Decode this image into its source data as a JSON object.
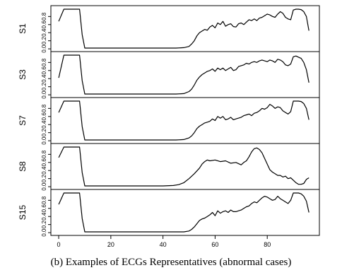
{
  "caption": "(b) Examples of ECGs Representatives (abnormal cases)",
  "chart_data": {
    "type": "line",
    "title": "",
    "xlabel": "",
    "ylabel": "",
    "xlim": [
      0,
      100
    ],
    "ylim": [
      0,
      1.0
    ],
    "x_ticks": [
      0,
      20,
      40,
      60,
      80
    ],
    "y_ticks": [
      0.0,
      0.2,
      0.4,
      0.6,
      0.8
    ],
    "y_tick_labels": [
      "0.0",
      "0.2",
      "0.4",
      "0.6",
      "0.8"
    ],
    "line_color": "#000000",
    "panels": [
      {
        "label": "S1",
        "x": [
          0,
          2,
          4,
          6,
          8,
          9,
          10,
          20,
          30,
          40,
          45,
          48,
          50,
          51,
          52,
          53,
          54,
          55,
          56,
          57,
          58,
          59,
          60,
          61,
          62,
          63,
          64,
          65,
          66,
          67,
          68,
          69,
          70,
          71,
          72,
          73,
          74,
          75,
          76,
          77,
          78,
          79,
          80,
          81,
          82,
          83,
          84,
          85,
          86,
          87,
          88,
          89,
          90,
          91,
          92,
          93,
          94,
          95,
          96
        ],
        "y": [
          0.68,
          0.98,
          0.98,
          0.98,
          0.98,
          0.35,
          0.02,
          0.02,
          0.02,
          0.02,
          0.02,
          0.03,
          0.06,
          0.12,
          0.2,
          0.32,
          0.4,
          0.44,
          0.48,
          0.46,
          0.54,
          0.58,
          0.52,
          0.64,
          0.6,
          0.68,
          0.56,
          0.6,
          0.62,
          0.55,
          0.54,
          0.62,
          0.64,
          0.6,
          0.66,
          0.72,
          0.7,
          0.74,
          0.7,
          0.76,
          0.78,
          0.82,
          0.86,
          0.84,
          0.8,
          0.78,
          0.86,
          0.92,
          0.88,
          0.78,
          0.74,
          0.72,
          0.96,
          0.98,
          0.98,
          0.97,
          0.92,
          0.8,
          0.45
        ]
      },
      {
        "label": "S3",
        "x": [
          0,
          2,
          4,
          6,
          8,
          9,
          10,
          20,
          30,
          40,
          45,
          48,
          50,
          51,
          52,
          53,
          54,
          55,
          56,
          57,
          58,
          59,
          60,
          61,
          62,
          63,
          64,
          65,
          66,
          67,
          68,
          69,
          70,
          71,
          72,
          73,
          74,
          75,
          76,
          77,
          78,
          79,
          80,
          81,
          82,
          83,
          84,
          85,
          86,
          87,
          88,
          89,
          90,
          91,
          92,
          93,
          94,
          95,
          96
        ],
        "y": [
          0.42,
          0.98,
          0.98,
          0.98,
          0.98,
          0.35,
          0.02,
          0.02,
          0.02,
          0.02,
          0.02,
          0.03,
          0.08,
          0.14,
          0.24,
          0.36,
          0.44,
          0.5,
          0.54,
          0.58,
          0.6,
          0.64,
          0.58,
          0.66,
          0.62,
          0.66,
          0.6,
          0.64,
          0.68,
          0.6,
          0.62,
          0.7,
          0.72,
          0.74,
          0.78,
          0.76,
          0.8,
          0.82,
          0.8,
          0.84,
          0.86,
          0.84,
          0.82,
          0.86,
          0.84,
          0.8,
          0.88,
          0.86,
          0.82,
          0.74,
          0.72,
          0.76,
          0.94,
          0.96,
          0.93,
          0.9,
          0.8,
          0.62,
          0.3
        ]
      },
      {
        "label": "S7",
        "x": [
          0,
          2,
          4,
          6,
          8,
          9,
          10,
          20,
          30,
          40,
          45,
          48,
          50,
          51,
          52,
          53,
          54,
          55,
          56,
          57,
          58,
          59,
          60,
          61,
          62,
          63,
          64,
          65,
          66,
          67,
          68,
          69,
          70,
          71,
          72,
          73,
          74,
          75,
          76,
          77,
          78,
          79,
          80,
          81,
          82,
          83,
          84,
          85,
          86,
          87,
          88,
          89,
          90,
          91,
          92,
          93,
          94,
          95,
          96
        ],
        "y": [
          0.7,
          0.98,
          0.98,
          0.98,
          0.98,
          0.35,
          0.02,
          0.02,
          0.02,
          0.02,
          0.02,
          0.03,
          0.07,
          0.12,
          0.2,
          0.3,
          0.36,
          0.4,
          0.44,
          0.46,
          0.48,
          0.54,
          0.5,
          0.6,
          0.56,
          0.6,
          0.52,
          0.54,
          0.58,
          0.52,
          0.54,
          0.56,
          0.58,
          0.62,
          0.64,
          0.66,
          0.62,
          0.68,
          0.7,
          0.74,
          0.8,
          0.78,
          0.82,
          0.9,
          0.86,
          0.8,
          0.84,
          0.82,
          0.74,
          0.7,
          0.66,
          0.72,
          0.98,
          0.98,
          0.98,
          0.97,
          0.92,
          0.8,
          0.52
        ]
      },
      {
        "label": "S8",
        "x": [
          0,
          2,
          4,
          6,
          8,
          9,
          10,
          20,
          30,
          40,
          44,
          46,
          48,
          50,
          52,
          54,
          55,
          56,
          57,
          58,
          60,
          62,
          64,
          66,
          68,
          70,
          71,
          72,
          73,
          74,
          75,
          76,
          77,
          78,
          79,
          80,
          81,
          82,
          83,
          84,
          85,
          86,
          87,
          88,
          89,
          90,
          91,
          92,
          93,
          94,
          95,
          96
        ],
        "y": [
          0.72,
          0.98,
          0.98,
          0.98,
          0.98,
          0.35,
          0.02,
          0.02,
          0.02,
          0.02,
          0.03,
          0.05,
          0.1,
          0.2,
          0.32,
          0.46,
          0.56,
          0.62,
          0.66,
          0.64,
          0.66,
          0.62,
          0.64,
          0.58,
          0.6,
          0.54,
          0.6,
          0.64,
          0.74,
          0.86,
          0.94,
          0.96,
          0.92,
          0.84,
          0.7,
          0.56,
          0.42,
          0.36,
          0.32,
          0.28,
          0.28,
          0.24,
          0.26,
          0.2,
          0.22,
          0.16,
          0.1,
          0.06,
          0.06,
          0.08,
          0.18,
          0.22
        ]
      },
      {
        "label": "S15",
        "x": [
          0,
          2,
          4,
          6,
          8,
          9,
          10,
          20,
          30,
          40,
          45,
          48,
          50,
          51,
          52,
          53,
          54,
          55,
          56,
          57,
          58,
          59,
          60,
          61,
          62,
          63,
          64,
          65,
          66,
          67,
          68,
          69,
          70,
          71,
          72,
          73,
          74,
          75,
          76,
          77,
          78,
          79,
          80,
          81,
          82,
          83,
          84,
          85,
          86,
          87,
          88,
          89,
          90,
          91,
          92,
          93,
          94,
          95,
          96
        ],
        "y": [
          0.7,
          0.98,
          0.98,
          0.98,
          0.98,
          0.35,
          0.02,
          0.02,
          0.02,
          0.02,
          0.02,
          0.02,
          0.04,
          0.08,
          0.14,
          0.22,
          0.3,
          0.34,
          0.36,
          0.4,
          0.44,
          0.5,
          0.42,
          0.54,
          0.48,
          0.52,
          0.54,
          0.5,
          0.56,
          0.52,
          0.52,
          0.54,
          0.56,
          0.6,
          0.64,
          0.66,
          0.72,
          0.76,
          0.74,
          0.8,
          0.86,
          0.9,
          0.88,
          0.84,
          0.8,
          0.82,
          0.9,
          0.84,
          0.8,
          0.76,
          0.72,
          0.8,
          0.98,
          0.98,
          0.98,
          0.96,
          0.9,
          0.78,
          0.5
        ]
      }
    ]
  }
}
